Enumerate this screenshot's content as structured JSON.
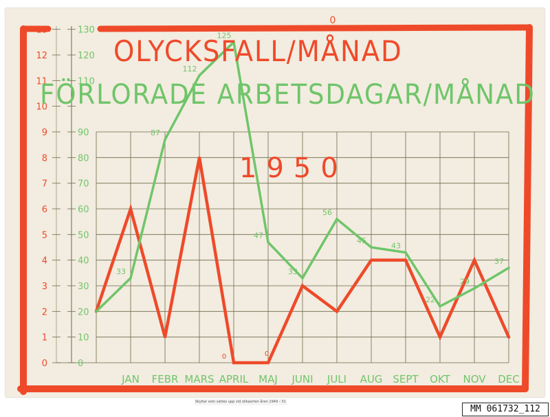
{
  "colors": {
    "board": "#f3ece0",
    "accidents": "#ee4a2a",
    "lost_days": "#6fc56a",
    "grid": "#6a6a4a"
  },
  "labels": {
    "title_accidents": "OLYCKSFALL/MÅNAD",
    "title_lost_days": "FÖRLORADE ARBETSDAGAR/MÅNAD",
    "year": "1950",
    "caption": "Skyltar som sattes upp vid olikaorten åren 1949 – 51",
    "catalog_number": "MM 061732_112"
  },
  "chart_data": {
    "type": "line",
    "title": "OLYCKSFALL/MÅNAD · FÖRLORADE ARBETSDAGAR/MÅNAD",
    "subtitle": "1950",
    "categories": [
      "JAN",
      "FEBR",
      "MARS",
      "APRIL",
      "MAJ",
      "JUNI",
      "JULI",
      "AUG",
      "SEPT",
      "OKT",
      "NOV",
      "DEC"
    ],
    "series": [
      {
        "name": "OLYCKSFALL/MÅNAD",
        "axis": "left",
        "color": "#ee4a2a",
        "start_value": 2,
        "values": [
          6,
          1,
          8,
          0,
          0,
          3,
          2,
          4,
          4,
          1,
          4,
          1
        ]
      },
      {
        "name": "FÖRLORADE ARBETSDAGAR/MÅNAD",
        "axis": "right",
        "color": "#6fc56a",
        "start_value": 20,
        "values": [
          33,
          87,
          112,
          125,
          47,
          33,
          56,
          45,
          43,
          22,
          29,
          37
        ],
        "point_labels": [
          "33",
          "87",
          "112",
          "125",
          "47",
          "33",
          "56",
          "45",
          "43",
          "22",
          "29",
          "37"
        ]
      }
    ],
    "y_left": {
      "range": [
        0,
        13
      ],
      "ticks": [
        "0",
        "1",
        "2",
        "3",
        "4",
        "5",
        "6",
        "7",
        "8",
        "9",
        "10",
        "11",
        "12",
        "13"
      ]
    },
    "y_right": {
      "range": [
        0,
        130
      ],
      "ticks": [
        "0",
        "10",
        "20",
        "30",
        "40",
        "50",
        "60",
        "70",
        "80",
        "90",
        "",
        "110",
        "120",
        "130"
      ]
    },
    "zero_marks": [
      "0",
      "0",
      "0"
    ],
    "grid": true,
    "legend": "none"
  }
}
